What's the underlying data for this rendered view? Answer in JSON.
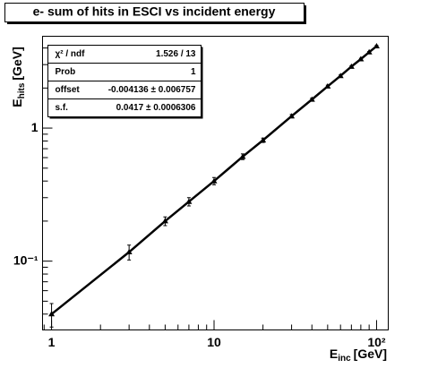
{
  "chart_data": {
    "type": "line",
    "title": "e- sum of hits in ESCI vs incident energy",
    "xlabel": {
      "main": "E",
      "sub": "inc",
      "unit": "[GeV]"
    },
    "ylabel": {
      "main": "E",
      "sub": "hits",
      "unit": "[GeV]"
    },
    "x": [
      1,
      3,
      5,
      7,
      10,
      15,
      20,
      30,
      40,
      50,
      60,
      70,
      80,
      90,
      100
    ],
    "series": [
      {
        "name": "e-",
        "color": "#000000",
        "values": [
          0.04,
          0.117,
          0.2,
          0.28,
          0.4,
          0.61,
          0.81,
          1.23,
          1.64,
          2.06,
          2.47,
          2.9,
          3.3,
          3.72,
          4.13
        ],
        "errors": [
          0.008,
          0.015,
          0.015,
          0.02,
          0.025,
          0.03,
          0.03,
          0.035,
          0.035,
          0.04,
          0.04,
          0.04,
          0.045,
          0.045,
          0.05
        ]
      }
    ],
    "xlim": [
      0.88,
      118
    ],
    "ylim": [
      0.0304,
      4.9
    ],
    "log_x": true,
    "log_y": true,
    "xticks": [
      1,
      10,
      {
        "value": 100,
        "label": "10²"
      }
    ],
    "yticks": [
      {
        "value": 0.1,
        "label": "10⁻¹"
      },
      1
    ],
    "xminor_ticks": [
      0.9,
      2,
      3,
      4,
      5,
      6,
      7,
      8,
      9,
      20,
      30,
      40,
      50,
      60,
      70,
      80,
      90
    ],
    "yminor_ticks": [
      0.04,
      0.05,
      0.06,
      0.07,
      0.08,
      0.09,
      0.2,
      0.3,
      0.4,
      0.5,
      0.6,
      0.7,
      0.8,
      0.9,
      2,
      3,
      4
    ],
    "stats": [
      {
        "label": "χ² / ndf",
        "value": "1.526 / 13"
      },
      {
        "label": "Prob",
        "value": "1"
      },
      {
        "label": "offset",
        "value": "-0.004136 ± 0.006757"
      },
      {
        "label": "s.f.",
        "value": "0.0417 ± 0.0006306"
      }
    ]
  }
}
